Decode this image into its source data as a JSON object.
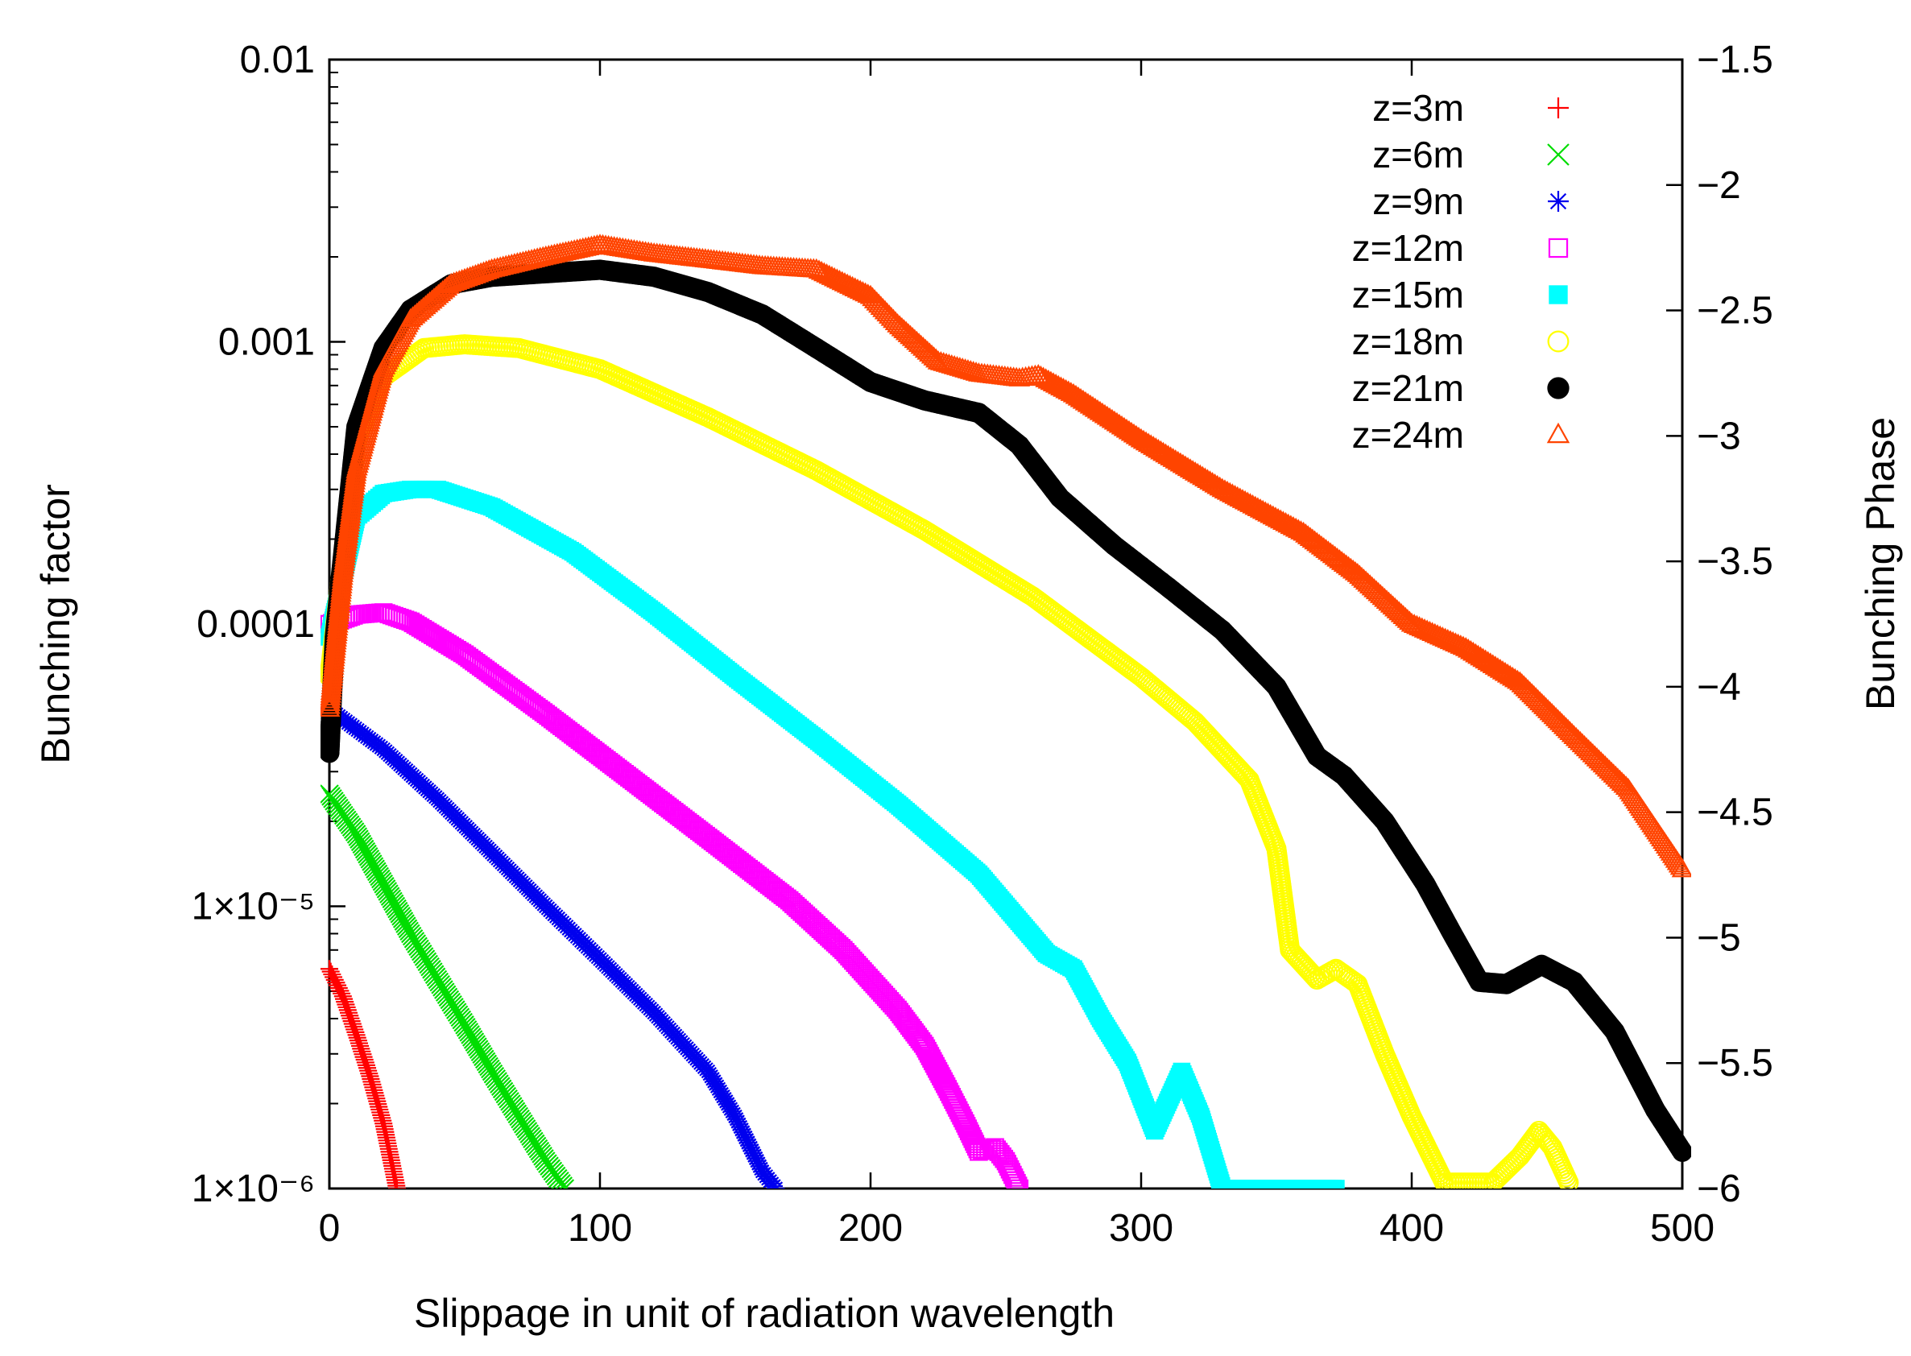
{
  "chart_data": {
    "type": "scatter",
    "title": "",
    "xlabel": "Slippage in unit of radiation wavelength",
    "ylabel": "Bunching factor",
    "y2label": "Bunching Phase",
    "xlim": [
      0,
      500
    ],
    "ylim_log10": [
      -6,
      -2
    ],
    "y2lim": [
      -6,
      -1.5
    ],
    "x_ticks": [
      {
        "value": 0,
        "label": "0"
      },
      {
        "value": 100,
        "label": "100"
      },
      {
        "value": 200,
        "label": "200"
      },
      {
        "value": 300,
        "label": "300"
      },
      {
        "value": 400,
        "label": "400"
      },
      {
        "value": 500,
        "label": "500"
      }
    ],
    "y_ticks": [
      {
        "value_log10": -2,
        "label": "0.01"
      },
      {
        "value_log10": -3,
        "label": "0.001"
      },
      {
        "value_log10": -4,
        "label": "0.0001"
      },
      {
        "value_log10": -5,
        "label": "1×10⁻⁵"
      },
      {
        "value_log10": -6,
        "label": "1×10⁻⁶"
      }
    ],
    "y2_ticks": [
      {
        "value": -1.5,
        "label": "−1.5"
      },
      {
        "value": -2,
        "label": "−2"
      },
      {
        "value": -2.5,
        "label": "−2.5"
      },
      {
        "value": -3,
        "label": "−3"
      },
      {
        "value": -3.5,
        "label": "−3.5"
      },
      {
        "value": -4,
        "label": "−4"
      },
      {
        "value": -4.5,
        "label": "−4.5"
      },
      {
        "value": -5,
        "label": "−5"
      },
      {
        "value": -5.5,
        "label": "−5.5"
      },
      {
        "value": -6,
        "label": "−6"
      }
    ],
    "legend_position": "top-right",
    "series": [
      {
        "name": "z=3m",
        "color": "#ff0000",
        "marker": "plus",
        "points": [
          [
            0,
            6e-06
          ],
          [
            5,
            4.8e-06
          ],
          [
            10,
            3.5e-06
          ],
          [
            15,
            2.5e-06
          ],
          [
            20,
            1.7e-06
          ],
          [
            25,
            1e-06
          ]
        ]
      },
      {
        "name": "z=6m",
        "color": "#00dd00",
        "marker": "cross",
        "points": [
          [
            0,
            2.5e-05
          ],
          [
            10,
            1.8e-05
          ],
          [
            20,
            1.2e-05
          ],
          [
            30,
            8e-06
          ],
          [
            40,
            5.5e-06
          ],
          [
            50,
            3.8e-06
          ],
          [
            60,
            2.6e-06
          ],
          [
            70,
            1.8e-06
          ],
          [
            80,
            1.25e-06
          ],
          [
            87,
            1e-06
          ]
        ]
      },
      {
        "name": "z=9m",
        "color": "#0000ee",
        "marker": "star",
        "points": [
          [
            0,
            5e-05
          ],
          [
            20,
            3.6e-05
          ],
          [
            40,
            2.4e-05
          ],
          [
            60,
            1.55e-05
          ],
          [
            80,
            1e-05
          ],
          [
            100,
            6.5e-06
          ],
          [
            120,
            4.2e-06
          ],
          [
            140,
            2.6e-06
          ],
          [
            150,
            1.8e-06
          ],
          [
            160,
            1.15e-06
          ],
          [
            165,
            1e-06
          ]
        ]
      },
      {
        "name": "z=12m",
        "color": "#ff00ff",
        "marker": "square",
        "points": [
          [
            0,
            0.0001
          ],
          [
            10,
            0.000108
          ],
          [
            20,
            0.00011
          ],
          [
            30,
            0.000102
          ],
          [
            50,
            7.8e-05
          ],
          [
            80,
            4.8e-05
          ],
          [
            110,
            2.9e-05
          ],
          [
            140,
            1.75e-05
          ],
          [
            170,
            1.05e-05
          ],
          [
            190,
            7e-06
          ],
          [
            210,
            4.3e-06
          ],
          [
            220,
            3.2e-06
          ],
          [
            228,
            2.3e-06
          ],
          [
            235,
            1.7e-06
          ],
          [
            240,
            1.35e-06
          ],
          [
            246,
            1.4e-06
          ],
          [
            250,
            1.25e-06
          ],
          [
            255,
            1e-06
          ]
        ]
      },
      {
        "name": "z=15m",
        "color": "#00ffff",
        "marker": "filled-square",
        "points": [
          [
            0,
            9e-05
          ],
          [
            10,
            0.00024
          ],
          [
            20,
            0.00029
          ],
          [
            30,
            0.0003
          ],
          [
            40,
            0.0003
          ],
          [
            60,
            0.00026
          ],
          [
            90,
            0.00018
          ],
          [
            120,
            0.00011
          ],
          [
            150,
            6.5e-05
          ],
          [
            180,
            3.9e-05
          ],
          [
            210,
            2.3e-05
          ],
          [
            240,
            1.3e-05
          ],
          [
            265,
            6.8e-06
          ],
          [
            275,
            6e-06
          ],
          [
            285,
            4e-06
          ],
          [
            295,
            2.8e-06
          ],
          [
            305,
            1.6e-06
          ],
          [
            315,
            2.6e-06
          ],
          [
            322,
            1.8e-06
          ],
          [
            330,
            1e-06
          ],
          [
            362,
            1e-06
          ],
          [
            372,
            1e-06
          ]
        ]
      },
      {
        "name": "z=18m",
        "color": "#ffff00",
        "marker": "circle",
        "points": [
          [
            0,
            6.5e-05
          ],
          [
            10,
            0.00045
          ],
          [
            20,
            0.00075
          ],
          [
            35,
            0.00095
          ],
          [
            50,
            0.00098
          ],
          [
            70,
            0.00095
          ],
          [
            100,
            0.0008
          ],
          [
            140,
            0.00054
          ],
          [
            180,
            0.00035
          ],
          [
            220,
            0.000215
          ],
          [
            260,
            0.000125
          ],
          [
            300,
            6.5e-05
          ],
          [
            320,
            4.5e-05
          ],
          [
            340,
            2.8e-05
          ],
          [
            350,
            1.6e-05
          ],
          [
            355,
            7e-06
          ],
          [
            365,
            5.5e-06
          ],
          [
            372,
            6e-06
          ],
          [
            380,
            5.3e-06
          ],
          [
            390,
            3e-06
          ],
          [
            400,
            1.8e-06
          ],
          [
            412,
            1.05e-06
          ],
          [
            430,
            1.05e-06
          ],
          [
            440,
            1.3e-06
          ],
          [
            447,
            1.6e-06
          ],
          [
            452,
            1.4e-06
          ],
          [
            458,
            1.05e-06
          ]
        ]
      },
      {
        "name": "z=21m",
        "color": "#000000",
        "marker": "filled-circle",
        "points": [
          [
            0,
            3.5e-05
          ],
          [
            2,
            9e-05
          ],
          [
            4,
            0.00014
          ],
          [
            10,
            0.0005
          ],
          [
            20,
            0.00095
          ],
          [
            30,
            0.0013
          ],
          [
            45,
            0.0016
          ],
          [
            60,
            0.0017
          ],
          [
            80,
            0.00175
          ],
          [
            100,
            0.0018
          ],
          [
            120,
            0.0017
          ],
          [
            140,
            0.0015
          ],
          [
            160,
            0.00125
          ],
          [
            180,
            0.00095
          ],
          [
            200,
            0.00072
          ],
          [
            220,
            0.00062
          ],
          [
            240,
            0.00056
          ],
          [
            255,
            0.00043
          ],
          [
            270,
            0.00028
          ],
          [
            290,
            0.00019
          ],
          [
            310,
            0.000135
          ],
          [
            330,
            9.5e-05
          ],
          [
            350,
            6e-05
          ],
          [
            365,
            3.4e-05
          ],
          [
            375,
            2.9e-05
          ],
          [
            390,
            2e-05
          ],
          [
            405,
            1.2e-05
          ],
          [
            415,
            8e-06
          ],
          [
            425,
            5.4e-06
          ],
          [
            435,
            5.3e-06
          ],
          [
            448,
            6.2e-06
          ],
          [
            460,
            5.4e-06
          ],
          [
            475,
            3.6e-06
          ],
          [
            490,
            1.9e-06
          ],
          [
            500,
            1.35e-06
          ]
        ]
      },
      {
        "name": "z=24m",
        "color": "#ff4400",
        "marker": "triangle",
        "points": [
          [
            0,
            5e-05
          ],
          [
            5,
            0.00015
          ],
          [
            10,
            0.00035
          ],
          [
            20,
            0.0008
          ],
          [
            30,
            0.0012
          ],
          [
            45,
            0.0016
          ],
          [
            60,
            0.0018
          ],
          [
            80,
            0.002
          ],
          [
            100,
            0.0022
          ],
          [
            120,
            0.00205
          ],
          [
            140,
            0.00195
          ],
          [
            160,
            0.00185
          ],
          [
            180,
            0.0018
          ],
          [
            200,
            0.00145
          ],
          [
            210,
            0.00115
          ],
          [
            225,
            0.00085
          ],
          [
            240,
            0.00077
          ],
          [
            255,
            0.00074
          ],
          [
            262,
            0.00076
          ],
          [
            275,
            0.00065
          ],
          [
            300,
            0.00045
          ],
          [
            330,
            0.0003
          ],
          [
            360,
            0.00021
          ],
          [
            380,
            0.00015
          ],
          [
            400,
            0.0001
          ],
          [
            420,
            8.2e-05
          ],
          [
            440,
            6.2e-05
          ],
          [
            460,
            4e-05
          ],
          [
            480,
            2.6e-05
          ],
          [
            500,
            1.35e-05
          ]
        ]
      }
    ]
  }
}
